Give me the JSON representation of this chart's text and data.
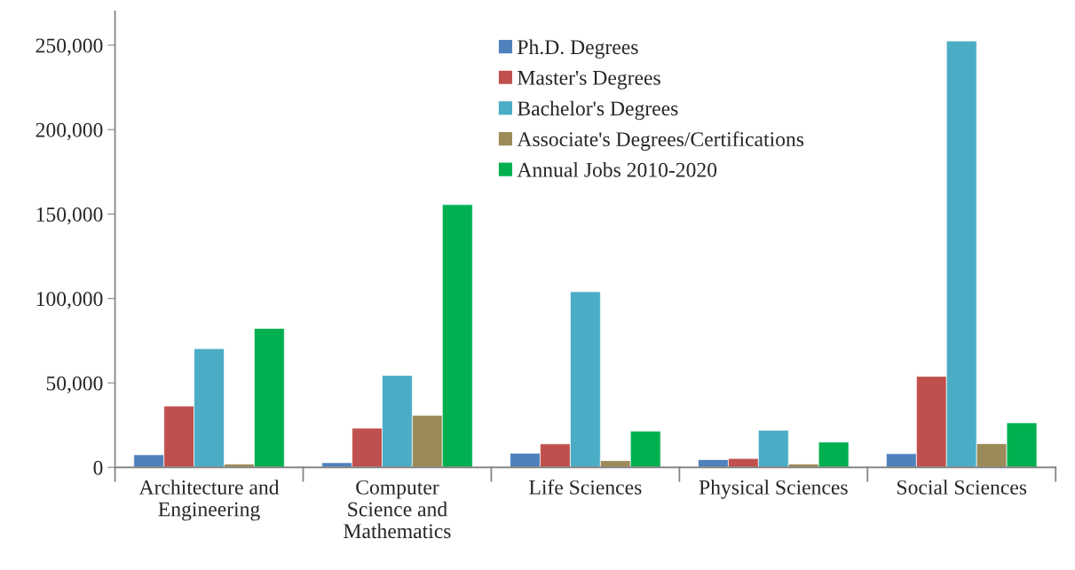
{
  "chart_data": {
    "type": "bar",
    "categories": [
      "Architecture and\nEngineering",
      "Computer\nScience and\nMathematics",
      "Life Sciences",
      "Physical Sciences",
      "Social Sciences"
    ],
    "series": [
      {
        "name": "Ph.D. Degrees",
        "color": "#4f81bd",
        "values": [
          7500,
          2800,
          8400,
          4600,
          8100
        ]
      },
      {
        "name": "Master's Degrees",
        "color": "#c0504d",
        "values": [
          36300,
          23200,
          13900,
          5300,
          53900
        ]
      },
      {
        "name": "Bachelor's Degrees",
        "color": "#4bacc6",
        "values": [
          70300,
          54400,
          104000,
          22000,
          252500
        ]
      },
      {
        "name": "Associate's Degrees/Certifications",
        "color": "#9b8b58",
        "values": [
          2000,
          30800,
          4000,
          2000,
          14100
        ]
      },
      {
        "name": "Annual Jobs 2010-2020",
        "color": "#00b050",
        "values": [
          82300,
          155600,
          21500,
          15000,
          26400
        ]
      }
    ],
    "ylim": [
      0,
      270000
    ],
    "yticks": [
      {
        "value": 0,
        "label": "0"
      },
      {
        "value": 50000,
        "label": "50,000"
      },
      {
        "value": 100000,
        "label": "100,000"
      },
      {
        "value": 150000,
        "label": "150,000"
      },
      {
        "value": 200000,
        "label": "200,000"
      },
      {
        "value": 250000,
        "label": "250,000"
      }
    ],
    "grid": false,
    "legend": "top"
  }
}
